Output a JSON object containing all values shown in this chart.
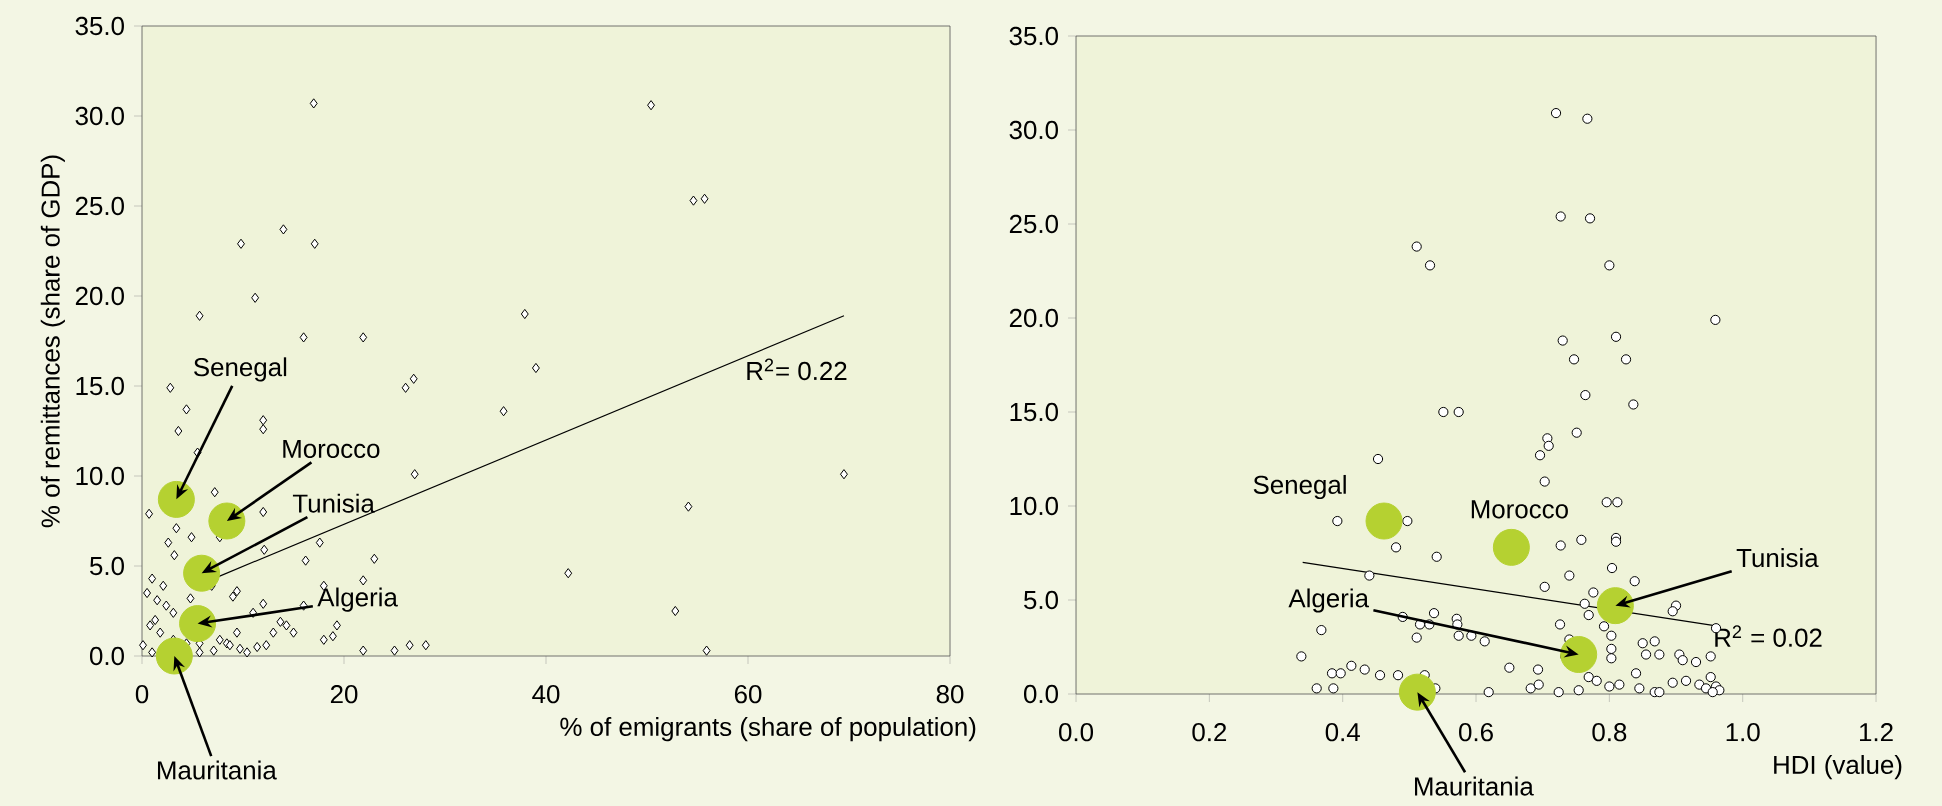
{
  "chart_data": [
    {
      "type": "scatter",
      "xlabel": "% of emigrants (share of population)",
      "ylabel": "% of remittances (share of GDP)",
      "xlim": [
        0,
        80
      ],
      "ylim": [
        0,
        35
      ],
      "xticks": [
        0,
        20,
        40,
        60,
        80
      ],
      "yticks": [
        {
          "value": 0,
          "label": "0.0"
        },
        {
          "value": 5,
          "label": "5.0"
        },
        {
          "value": 10,
          "label": "10.0"
        },
        {
          "value": 15,
          "label": "15.0"
        },
        {
          "value": 20,
          "label": "20.0"
        },
        {
          "value": 25,
          "label": "25.0"
        },
        {
          "value": 30,
          "label": "30.0"
        },
        {
          "value": 35,
          "label": "35.0"
        }
      ],
      "series": [
        {
          "color": "#000000",
          "marker": "diamond",
          "x": [
            17.0,
            50.4,
            54.6,
            55.7,
            14.0,
            9.8,
            17.1,
            11.2,
            5.7,
            16.0,
            21.9,
            37.9,
            39.0,
            2.8,
            26.1,
            26.9,
            4.4,
            35.8,
            12.0,
            12.0,
            3.6,
            5.5,
            7.2,
            27.0,
            69.5,
            54.1,
            0.7,
            12.0,
            3.4,
            2.6,
            4.9,
            7.7,
            3.2,
            12.1,
            17.6,
            23.0,
            16.2,
            42.2,
            21.9,
            18.0,
            52.8,
            55.9,
            1.0,
            2.1,
            0.5,
            1.5,
            2.4,
            3.1,
            1.3,
            0.8,
            1.8,
            3.1,
            4.4,
            5.7,
            7.1,
            8.4,
            9.4,
            9.0,
            9.4,
            6.9,
            4.8,
            12.0,
            11.0,
            13.0,
            13.7,
            15.0,
            14.3,
            16.0,
            19.3,
            18.9,
            18.0,
            21.9,
            25.0,
            26.5,
            28.1,
            10.4,
            11.4,
            12.3,
            5.7,
            7.7,
            8.7,
            9.7,
            1.0,
            0.1
          ],
          "values": [
            30.7,
            30.6,
            25.3,
            25.4,
            23.7,
            22.9,
            22.9,
            19.9,
            18.9,
            17.7,
            17.7,
            19.0,
            16.0,
            14.9,
            14.9,
            15.4,
            13.7,
            13.6,
            13.1,
            12.6,
            12.5,
            11.3,
            9.1,
            10.1,
            10.1,
            8.3,
            7.9,
            8.0,
            7.1,
            6.3,
            6.6,
            6.6,
            5.6,
            5.9,
            6.3,
            5.4,
            5.3,
            4.6,
            4.2,
            3.9,
            2.5,
            0.3,
            4.3,
            3.9,
            3.5,
            3.1,
            2.8,
            2.4,
            2.0,
            1.7,
            1.3,
            0.9,
            0.7,
            0.2,
            0.3,
            0.7,
            1.3,
            3.3,
            3.6,
            3.9,
            3.2,
            2.9,
            2.4,
            1.3,
            1.9,
            1.3,
            1.7,
            2.8,
            1.7,
            1.1,
            0.9,
            0.3,
            0.3,
            0.6,
            0.6,
            0.2,
            0.5,
            0.6,
            0.7,
            0.9,
            0.6,
            0.4,
            0.2,
            0.6
          ]
        },
        {
          "type": "line",
          "color": "#000000",
          "marker": "none",
          "x": [
            7.1,
            69.5
          ],
          "values": [
            4.3,
            18.9
          ]
        },
        {
          "color": "#b5d131",
          "marker": "circle",
          "x": [
            3.4,
            8.4,
            5.9,
            5.5,
            3.2
          ],
          "values": [
            8.7,
            7.5,
            4.6,
            1.8,
            0.0
          ]
        }
      ],
      "annotations": [
        {
          "text": "Senegal",
          "x": 3.4,
          "y": 8.7
        },
        {
          "text": "Morocco",
          "x": 8.4,
          "y": 7.5
        },
        {
          "text": "Tunisia",
          "x": 5.9,
          "y": 4.6
        },
        {
          "text": "Algeria",
          "x": 5.5,
          "y": 1.8
        },
        {
          "text": "Mauritania",
          "x": 3.2,
          "y": 0.0
        },
        "R$^{2}$= 0.22"
      ]
    },
    {
      "type": "scatter",
      "xlabel": "HDI (value)",
      "xlim": [
        0,
        1.2
      ],
      "ylim": [
        0,
        35
      ],
      "xticks": [
        {
          "value": 0,
          "label": "0.0"
        },
        {
          "value": 0.2,
          "label": "0.2"
        },
        {
          "value": 0.4,
          "label": "0.4"
        },
        {
          "value": 0.6,
          "label": "0.6"
        },
        {
          "value": 0.8,
          "label": "0.8"
        },
        {
          "value": 1.0,
          "label": "1.0"
        },
        {
          "value": 1.2,
          "label": "1.2"
        }
      ],
      "yticks": [
        {
          "value": 0,
          "label": "0.0"
        },
        {
          "value": 5,
          "label": "5.0"
        },
        {
          "value": 10,
          "label": "10.0"
        },
        {
          "value": 15,
          "label": "15.0"
        },
        {
          "value": 20,
          "label": "20.0"
        },
        {
          "value": 25,
          "label": "25.0"
        },
        {
          "value": 30,
          "label": "30.0"
        },
        {
          "value": 35,
          "label": "35.0"
        }
      ],
      "series": [
        {
          "color": "#000000",
          "marker": "circle",
          "x": [
            0.72,
            0.767,
            0.727,
            0.771,
            0.511,
            0.531,
            0.8,
            0.959,
            0.73,
            0.81,
            0.747,
            0.825,
            0.764,
            0.836,
            0.551,
            0.574,
            0.751,
            0.707,
            0.709,
            0.696,
            0.703,
            0.453,
            0.392,
            0.497,
            0.48,
            0.541,
            0.796,
            0.812,
            0.81,
            0.81,
            0.727,
            0.758,
            0.44,
            0.74,
            0.804,
            0.838,
            0.703,
            0.776,
            0.763,
            0.769,
            0.9,
            0.895,
            0.96,
            0.49,
            0.516,
            0.53,
            0.537,
            0.571,
            0.572,
            0.574,
            0.593,
            0.613,
            0.511,
            0.368,
            0.726,
            0.74,
            0.792,
            0.803,
            0.803,
            0.803,
            0.85,
            0.855,
            0.868,
            0.875,
            0.905,
            0.952,
            0.91,
            0.93,
            0.734,
            0.338,
            0.384,
            0.397,
            0.413,
            0.433,
            0.456,
            0.483,
            0.523,
            0.65,
            0.693,
            0.769,
            0.781,
            0.84,
            0.815,
            0.361,
            0.386,
            0.539,
            0.619,
            0.682,
            0.694,
            0.724,
            0.754,
            0.8,
            0.845,
            0.868,
            0.875,
            0.895,
            0.915,
            0.935,
            0.952,
            0.96,
            0.965,
            0.945,
            0.955
          ],
          "values": [
            30.9,
            30.6,
            25.4,
            25.3,
            23.8,
            22.8,
            22.8,
            19.9,
            18.8,
            19.0,
            17.8,
            17.8,
            15.9,
            15.4,
            15.0,
            15.0,
            13.9,
            13.6,
            13.2,
            12.7,
            11.3,
            12.5,
            9.2,
            9.2,
            7.8,
            7.3,
            10.2,
            10.2,
            8.3,
            8.1,
            7.9,
            8.2,
            6.3,
            6.3,
            6.7,
            6.0,
            5.7,
            5.4,
            4.8,
            4.2,
            4.7,
            4.4,
            3.5,
            4.1,
            3.7,
            3.7,
            4.3,
            4.0,
            3.7,
            3.1,
            3.1,
            2.8,
            3.0,
            3.4,
            3.7,
            2.9,
            3.6,
            3.1,
            2.4,
            1.9,
            2.7,
            2.1,
            2.8,
            2.1,
            2.1,
            2.0,
            1.8,
            1.7,
            2.0,
            2.0,
            1.1,
            1.1,
            1.5,
            1.3,
            1.0,
            1.0,
            1.0,
            1.4,
            1.3,
            0.9,
            0.7,
            1.1,
            0.5,
            0.3,
            0.3,
            0.3,
            0.1,
            0.3,
            0.5,
            0.1,
            0.2,
            0.4,
            0.3,
            0.1,
            0.1,
            0.6,
            0.7,
            0.5,
            0.9,
            0.4,
            0.2,
            0.3,
            0.1
          ]
        },
        {
          "type": "line",
          "color": "#000000",
          "marker": "none",
          "x": [
            0.34,
            0.965
          ],
          "values": [
            7.0,
            3.6
          ]
        },
        {
          "color": "#b5d131",
          "marker": "circle",
          "x": [
            0.462,
            0.653,
            0.809,
            0.754,
            0.512
          ],
          "values": [
            9.2,
            7.8,
            4.7,
            2.1,
            0.1
          ]
        }
      ],
      "annotations": [
        {
          "text": "Senegal",
          "x": 0.462,
          "y": 9.2
        },
        {
          "text": "Morocco",
          "x": 0.653,
          "y": 7.8
        },
        {
          "text": "Tunisia",
          "x": 0.809,
          "y": 4.7
        },
        {
          "text": "Algeria",
          "x": 0.754,
          "y": 2.1
        },
        {
          "text": "Mauritania",
          "x": 0.512,
          "y": 0.1
        },
        "R$^{2}$ = 0.02"
      ]
    }
  ]
}
